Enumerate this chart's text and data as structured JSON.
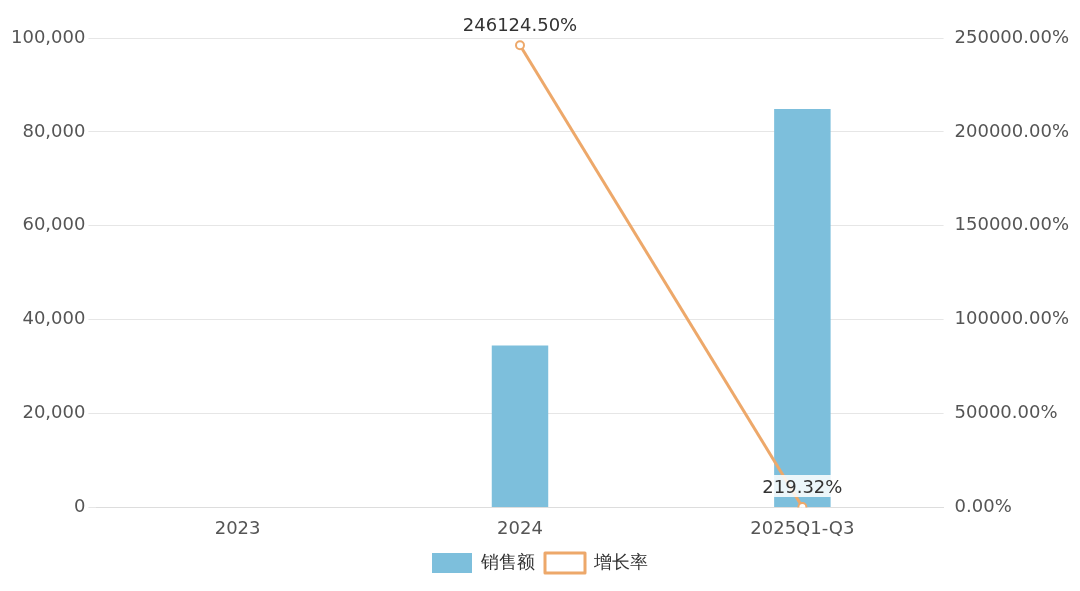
{
  "chart_data": {
    "type": "bar",
    "categories": [
      "2023",
      "2024",
      "2025Q1-Q3"
    ],
    "series": [
      {
        "name": "销售额",
        "color": "#7dbfdc",
        "values": [
          0,
          34500,
          84900
        ]
      },
      {
        "name": "增长率",
        "type": "line",
        "axis": "y2",
        "color": "#eda86a",
        "marker": "circle",
        "values": [
          null,
          246124.5,
          219.32
        ],
        "value_labels": [
          null,
          "246124.50%",
          "219.32%"
        ]
      }
    ],
    "ylim": [
      0,
      100000
    ],
    "yticks": [
      {
        "value": 0,
        "label": "0"
      },
      {
        "value": 20000,
        "label": "20,000"
      },
      {
        "value": 40000,
        "label": "40,000"
      },
      {
        "value": 60000,
        "label": "60,000"
      },
      {
        "value": 80000,
        "label": "80,000"
      },
      {
        "value": 100000,
        "label": "100,000"
      }
    ],
    "y2lim": [
      0,
      250000
    ],
    "y2ticks": [
      {
        "value": 0,
        "label": "0.00%"
      },
      {
        "value": 50000,
        "label": "50000.00%"
      },
      {
        "value": 100000,
        "label": "100000.00%"
      },
      {
        "value": 150000,
        "label": "150000.00%"
      },
      {
        "value": 200000,
        "label": "200000.00%"
      },
      {
        "value": 250000,
        "label": "250000.00%"
      }
    ],
    "grid": "y",
    "legend": "bottom"
  }
}
